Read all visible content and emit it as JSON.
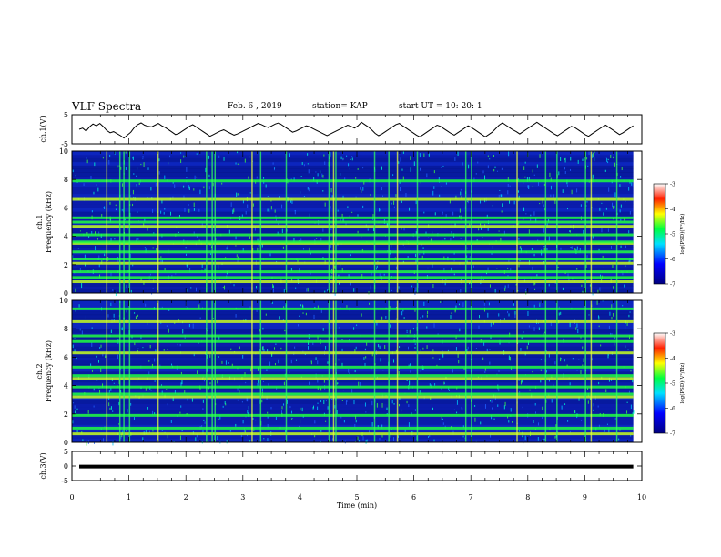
{
  "header": {
    "title": "VLF Spectra",
    "date": "Feb. 6 , 2019",
    "station": "station= KAP",
    "start": "start UT = 10: 20: 1"
  },
  "chart_data": [
    {
      "type": "line",
      "panel": "waveform-ch1",
      "ylabel": "ch.1(V)",
      "ylim": [
        -5,
        5
      ],
      "yticks": [
        "5",
        "-5"
      ],
      "xlim": [
        0,
        10
      ],
      "note_values_in": "volts",
      "series": [
        {
          "values": [
            0.0,
            0.4,
            -0.6,
            0.8,
            1.8,
            1.2,
            2.0,
            0.9,
            -0.4,
            -1.2,
            -0.8,
            -1.5,
            -2.2,
            -3.0,
            -2.0,
            -1.0,
            0.6,
            1.6,
            2.2,
            1.4,
            1.0,
            0.8,
            1.4,
            2.0,
            1.2,
            0.6,
            -0.2,
            -1.0,
            -1.8,
            -1.4,
            -0.6,
            0.2,
            1.0,
            1.6,
            0.8,
            0.0,
            -0.8,
            -1.6,
            -2.4,
            -1.8,
            -1.2,
            -0.6,
            -0.2,
            -0.8,
            -1.4,
            -2.0,
            -1.6,
            -1.0,
            -0.4,
            0.2,
            0.8,
            1.4,
            2.0,
            1.6,
            1.0,
            0.6,
            1.2,
            1.8,
            2.2,
            1.4,
            0.6,
            -0.2,
            -1.0,
            -0.6,
            0.0,
            0.6,
            1.2,
            0.8,
            0.2,
            -0.4,
            -1.0,
            -1.6,
            -2.2,
            -1.6,
            -1.0,
            -0.4,
            0.2,
            0.8,
            1.4,
            1.0,
            0.4,
            1.2,
            2.4,
            1.6,
            0.8,
            -0.2,
            -1.4,
            -2.2,
            -1.6,
            -0.8,
            0.0,
            0.8,
            1.6,
            2.0,
            1.2,
            0.4,
            -0.4,
            -1.2,
            -2.0,
            -2.6,
            -1.8,
            -1.0,
            -0.2,
            0.6,
            1.4,
            1.0,
            0.2,
            -0.6,
            -1.4,
            -2.0,
            -1.2,
            -0.4,
            0.4,
            1.2,
            0.6,
            -0.2,
            -1.0,
            -1.8,
            -2.6,
            -1.8,
            -1.0,
            0.2,
            1.4,
            2.2,
            1.4,
            0.6,
            -0.2,
            -0.8,
            -1.6,
            -0.8,
            0.0,
            0.8,
            1.6,
            2.4,
            1.6,
            0.8,
            0.0,
            -0.8,
            -1.6,
            -2.2,
            -1.4,
            -0.6,
            0.2,
            1.0,
            0.6,
            -0.2,
            -1.0,
            -1.8,
            -2.4,
            -1.6,
            -0.8,
            0.0,
            0.8,
            1.4,
            0.6,
            -0.2,
            -1.0,
            -1.8,
            -1.2,
            -0.4,
            0.4,
            1.2
          ]
        }
      ]
    },
    {
      "type": "heatmap",
      "panel": "spectrogram-ch1",
      "ylabel": "ch.1 Frequency (kHz)",
      "ylim": [
        0,
        10
      ],
      "yticks": [
        "0",
        "2",
        "4",
        "6",
        "8",
        "10"
      ],
      "xlim": [
        0,
        10
      ],
      "colorbar": {
        "label": "log(PSD)(V²/Hz)",
        "range": [
          -7,
          -3
        ],
        "ticks": [
          "-3",
          "-4",
          "-5",
          "-6",
          "-7"
        ]
      },
      "horizontal_lines_khz": [
        0.8,
        1.1,
        1.5,
        2.1,
        2.4,
        2.9,
        3.5,
        3.6,
        4.1,
        4.7,
        5.0,
        5.3,
        6.6,
        7.9
      ],
      "vertical_lines_min": [
        0.6,
        0.83,
        0.9,
        1.0,
        1.5,
        2.35,
        2.45,
        2.5,
        3.15,
        3.3,
        3.75,
        4.5,
        4.58,
        4.62,
        5.3,
        5.55,
        5.7,
        6.05,
        6.9,
        7.0,
        7.8,
        8.3,
        8.5,
        9.0,
        9.1,
        9.55
      ]
    },
    {
      "type": "heatmap",
      "panel": "spectrogram-ch2",
      "ylabel": "ch.2 Frequency (kHz)",
      "ylim": [
        0,
        10
      ],
      "yticks": [
        "0",
        "2",
        "4",
        "6",
        "8",
        "10"
      ],
      "xlim": [
        0,
        10
      ],
      "colorbar": {
        "label": "log(PSD)(V²/Hz)",
        "range": [
          -7,
          -3
        ],
        "ticks": [
          "-3",
          "-4",
          "-5",
          "-6",
          "-7"
        ]
      },
      "horizontal_lines_khz": [
        0.6,
        1.0,
        1.9,
        3.2,
        3.4,
        3.9,
        4.5,
        4.7,
        5.3,
        6.3,
        7.1,
        7.5,
        8.5,
        9.4
      ],
      "vertical_lines_min": [
        0.6,
        0.83,
        0.9,
        1.0,
        1.5,
        2.35,
        2.45,
        2.5,
        3.15,
        3.3,
        3.75,
        4.5,
        4.58,
        4.62,
        5.3,
        5.55,
        5.7,
        6.05,
        6.9,
        7.0,
        7.8,
        8.3,
        8.5,
        9.0,
        9.1,
        9.55
      ]
    },
    {
      "type": "line",
      "panel": "waveform-ch3",
      "ylabel": "ch.3(V)",
      "ylim": [
        -5,
        5
      ],
      "yticks": [
        "5",
        "0",
        "-5"
      ],
      "xlim": [
        0,
        10
      ],
      "series": [
        {
          "values": [
            -0.2,
            -0.2
          ]
        }
      ]
    }
  ],
  "x_axis": {
    "label": "Time (min)",
    "ticks": [
      "0",
      "1",
      "2",
      "3",
      "4",
      "5",
      "6",
      "7",
      "8",
      "9",
      "10"
    ]
  }
}
